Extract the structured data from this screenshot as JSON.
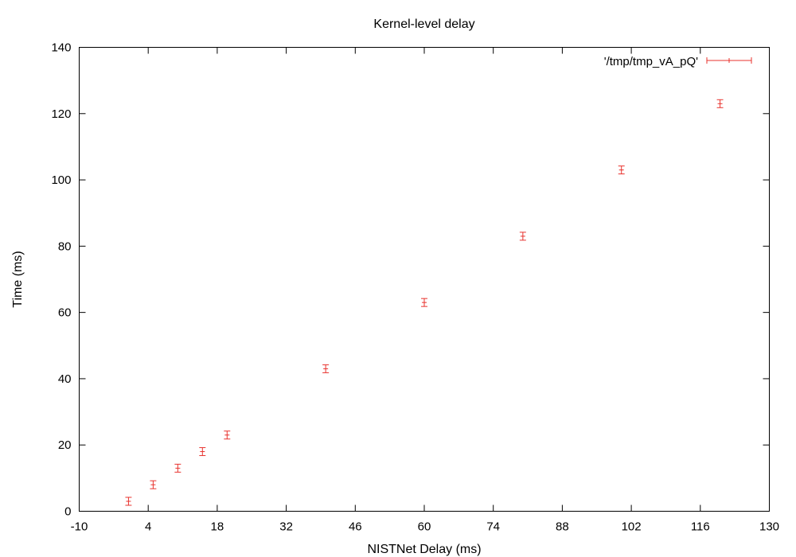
{
  "chart_data": {
    "type": "scatter",
    "title": "Kernel-level delay",
    "xlabel": "NISTNet Delay (ms)",
    "ylabel": "Time (ms)",
    "xlim": [
      -10,
      130
    ],
    "ylim": [
      0,
      140
    ],
    "xticks": [
      -10,
      4,
      18,
      32,
      46,
      60,
      74,
      88,
      102,
      116,
      130
    ],
    "yticks": [
      0,
      20,
      40,
      60,
      80,
      100,
      120,
      140
    ],
    "grid": false,
    "legend_position": "top-right",
    "series": [
      {
        "name": "'/tmp/tmp_vA_pQ'",
        "color": "#e8332e",
        "marker": "plus",
        "error_bars": "y",
        "points": [
          {
            "x": 0,
            "y": 3,
            "err": 1.2
          },
          {
            "x": 5,
            "y": 8,
            "err": 1.2
          },
          {
            "x": 10,
            "y": 13,
            "err": 1.2
          },
          {
            "x": 15,
            "y": 18,
            "err": 1.2
          },
          {
            "x": 20,
            "y": 23,
            "err": 1.2
          },
          {
            "x": 40,
            "y": 43,
            "err": 1.2
          },
          {
            "x": 60,
            "y": 63,
            "err": 1.2
          },
          {
            "x": 80,
            "y": 83,
            "err": 1.2
          },
          {
            "x": 100,
            "y": 103,
            "err": 1.2
          },
          {
            "x": 120,
            "y": 123,
            "err": 1.2
          }
        ]
      }
    ]
  }
}
